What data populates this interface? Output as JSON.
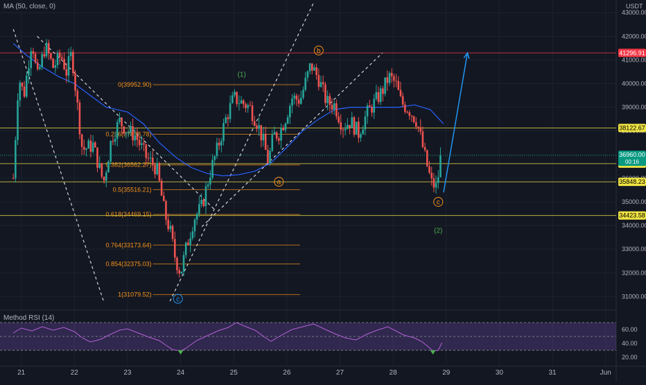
{
  "indicator_label": "MA (50, close, 0)",
  "rsi_label": "Method RSI (14)",
  "currency": "USDT",
  "colors": {
    "background": "#131722",
    "up": "#26a69a",
    "down": "#ef5350",
    "ma": "#2962ff",
    "fib": "#f7931a",
    "rsi_line": "#b45fd6",
    "rsi_band": "#7e57c2",
    "projection": "#2196f3",
    "current": "#089981"
  },
  "chart_data": {
    "type": "candlestick",
    "x_ticks": [
      "21",
      "22",
      "23",
      "24",
      "25",
      "26",
      "27",
      "28",
      "29",
      "30",
      "31",
      "Jun"
    ],
    "y_ticks": [
      31000,
      32000,
      33000,
      34000,
      35000,
      36000,
      37000,
      38000,
      39000,
      40000,
      41000,
      42000,
      43000
    ],
    "y_tick_labels": [
      "31000.00",
      "32000.00",
      "33000.00",
      "34000.00",
      "35000.00",
      "36000.00",
      "37000.00",
      "38000.00",
      "39000.00",
      "40000.00",
      "41000.00",
      "42000.00",
      "43000.00"
    ],
    "ylim": [
      30600,
      43300
    ],
    "price_path": [
      [
        20.85,
        36000
      ],
      [
        20.95,
        40300
      ],
      [
        21.05,
        39500
      ],
      [
        21.2,
        41900
      ],
      [
        21.3,
        40200
      ],
      [
        21.45,
        41600
      ],
      [
        21.6,
        40700
      ],
      [
        21.75,
        41200
      ],
      [
        21.85,
        40500
      ],
      [
        21.95,
        41300
      ],
      [
        22.05,
        39200
      ],
      [
        22.15,
        37200
      ],
      [
        22.35,
        37400
      ],
      [
        22.55,
        35800
      ],
      [
        22.7,
        37700
      ],
      [
        22.85,
        38400
      ],
      [
        23.0,
        38000
      ],
      [
        23.15,
        37800
      ],
      [
        23.35,
        36900
      ],
      [
        23.55,
        36400
      ],
      [
        23.7,
        34500
      ],
      [
        23.8,
        33800
      ],
      [
        23.9,
        32600
      ],
      [
        24.0,
        32000
      ],
      [
        24.1,
        33000
      ],
      [
        24.25,
        34300
      ],
      [
        24.4,
        34800
      ],
      [
        24.55,
        36200
      ],
      [
        24.7,
        37300
      ],
      [
        24.85,
        38500
      ],
      [
        25.0,
        39400
      ],
      [
        25.15,
        39200
      ],
      [
        25.3,
        39000
      ],
      [
        25.45,
        38300
      ],
      [
        25.55,
        37600
      ],
      [
        25.65,
        36700
      ],
      [
        25.75,
        37800
      ],
      [
        25.85,
        37900
      ],
      [
        25.95,
        38400
      ],
      [
        26.1,
        39400
      ],
      [
        26.25,
        39300
      ],
      [
        26.45,
        40800
      ],
      [
        26.6,
        40200
      ],
      [
        26.75,
        39200
      ],
      [
        26.9,
        39100
      ],
      [
        27.05,
        38200
      ],
      [
        27.2,
        38400
      ],
      [
        27.35,
        37900
      ],
      [
        27.5,
        38700
      ],
      [
        27.65,
        39200
      ],
      [
        27.8,
        39700
      ],
      [
        27.92,
        40300
      ],
      [
        28.05,
        40000
      ],
      [
        28.15,
        39200
      ],
      [
        28.3,
        38900
      ],
      [
        28.45,
        38400
      ],
      [
        28.6,
        36900
      ],
      [
        28.72,
        35800
      ],
      [
        28.82,
        35600
      ],
      [
        28.9,
        36960
      ]
    ],
    "ma50": [
      [
        20.85,
        41700
      ],
      [
        21.1,
        41200
      ],
      [
        21.4,
        40700
      ],
      [
        21.7,
        40300
      ],
      [
        22.0,
        40000
      ],
      [
        22.3,
        39500
      ],
      [
        22.6,
        39000
      ],
      [
        23.0,
        38800
      ],
      [
        23.3,
        38300
      ],
      [
        23.6,
        37500
      ],
      [
        23.9,
        36900
      ],
      [
        24.2,
        36450
      ],
      [
        24.5,
        36200
      ],
      [
        24.8,
        36100
      ],
      [
        25.1,
        36150
      ],
      [
        25.4,
        36300
      ],
      [
        25.7,
        36650
      ],
      [
        26.0,
        37300
      ],
      [
        26.3,
        38000
      ],
      [
        26.6,
        38500
      ],
      [
        26.9,
        38900
      ],
      [
        27.2,
        39000
      ],
      [
        27.5,
        39000
      ],
      [
        27.8,
        39000
      ],
      [
        28.1,
        39000
      ],
      [
        28.4,
        39100
      ],
      [
        28.7,
        38900
      ],
      [
        28.95,
        38300
      ]
    ],
    "current_price": {
      "value": 36960.0,
      "label": "36960.00",
      "countdown": "00:16"
    },
    "price_levels": [
      {
        "value": 41296.91,
        "label": "41296.91",
        "color": "#f23645",
        "label_color": "#ffffff"
      },
      {
        "value": 38122.67,
        "label": "38122.67",
        "color": "#f0e442",
        "label_color": "#000000"
      },
      {
        "value": 36617.32,
        "label": "36617.32",
        "color": "#f0e442",
        "label_color": "#000000"
      },
      {
        "value": 35848.23,
        "label": "35848.23",
        "color": "#f0e442",
        "label_color": "#000000"
      },
      {
        "value": 34423.58,
        "label": "34423.58",
        "color": "#f0e442",
        "label_color": "#000000"
      }
    ],
    "fib_levels": [
      {
        "ratio": "0",
        "value": 39952.9,
        "label": "0(39952.90)"
      },
      {
        "ratio": "0.236",
        "value": 37858.78,
        "label": "0.236(37858.78)"
      },
      {
        "ratio": "0.382",
        "value": 36562.27,
        "label": "0.382(36562.27)"
      },
      {
        "ratio": "0.5",
        "value": 35516.21,
        "label": "0.5(35516.21)"
      },
      {
        "ratio": "0.618",
        "value": 34469.15,
        "label": "0.618(34469.15)"
      },
      {
        "ratio": "0.764",
        "value": 33173.64,
        "label": "0.764(33173.64)"
      },
      {
        "ratio": "0.854",
        "value": 32375.03,
        "label": "0.854(32375.03)"
      },
      {
        "ratio": "1",
        "value": 31079.52,
        "label": "1(31079.52)"
      }
    ],
    "wave_labels": [
      {
        "text": "b",
        "x": 26.6,
        "y": 41400,
        "color": "#f7931a",
        "circled": true
      },
      {
        "text": "(1)",
        "x": 25.15,
        "y": 40400,
        "color": "#4caf50",
        "circled": false
      },
      {
        "text": "a",
        "x": 25.85,
        "y": 35850,
        "color": "#f7931a",
        "circled": true
      },
      {
        "text": "c",
        "x": 28.85,
        "y": 35000,
        "color": "#f7931a",
        "circled": true
      },
      {
        "text": "(2)",
        "x": 28.85,
        "y": 33800,
        "color": "#4caf50",
        "circled": false
      },
      {
        "text": "c",
        "x": 23.95,
        "y": 30900,
        "color": "#2196f3",
        "circled": true
      }
    ],
    "trend_lines": [
      {
        "from": [
          20.85,
          42300
        ],
        "to": [
          22.55,
          30800
        ],
        "color": "#d1d4dc",
        "dashed": true
      },
      {
        "from": [
          21.3,
          42000
        ],
        "to": [
          24.65,
          34650
        ],
        "color": "#d1d4dc",
        "dashed": true
      },
      {
        "from": [
          23.8,
          30800
        ],
        "to": [
          26.5,
          43400
        ],
        "color": "#d1d4dc",
        "dashed": true
      },
      {
        "from": [
          24.4,
          33950
        ],
        "to": [
          27.8,
          41300
        ],
        "color": "#d1d4dc",
        "dashed": true
      }
    ],
    "projection": {
      "from": [
        28.95,
        35400
      ],
      "to": [
        29.4,
        41300
      ],
      "color": "#2196f3"
    },
    "rsi": {
      "ticks": [
        20,
        40,
        60
      ],
      "tick_labels": [
        "20.00",
        "40.00",
        "60.00"
      ],
      "ylim": [
        15,
        77
      ],
      "overbought": 70,
      "oversold": 30,
      "path": [
        [
          20.85,
          55
        ],
        [
          21.0,
          62
        ],
        [
          21.2,
          58
        ],
        [
          21.4,
          64
        ],
        [
          21.6,
          59
        ],
        [
          21.8,
          63
        ],
        [
          22.0,
          57
        ],
        [
          22.15,
          48
        ],
        [
          22.3,
          42
        ],
        [
          22.5,
          46
        ],
        [
          22.65,
          52
        ],
        [
          22.85,
          59
        ],
        [
          23.0,
          61
        ],
        [
          23.2,
          55
        ],
        [
          23.4,
          49
        ],
        [
          23.6,
          44
        ],
        [
          23.75,
          36
        ],
        [
          23.85,
          31
        ],
        [
          24.0,
          29
        ],
        [
          24.1,
          33
        ],
        [
          24.3,
          44
        ],
        [
          24.5,
          51
        ],
        [
          24.7,
          58
        ],
        [
          24.9,
          63
        ],
        [
          25.05,
          70
        ],
        [
          25.2,
          65
        ],
        [
          25.4,
          59
        ],
        [
          25.6,
          48
        ],
        [
          25.7,
          43
        ],
        [
          25.9,
          52
        ],
        [
          26.1,
          60
        ],
        [
          26.3,
          64
        ],
        [
          26.5,
          68
        ],
        [
          26.7,
          61
        ],
        [
          26.9,
          54
        ],
        [
          27.1,
          48
        ],
        [
          27.3,
          45
        ],
        [
          27.5,
          53
        ],
        [
          27.7,
          59
        ],
        [
          27.9,
          64
        ],
        [
          28.05,
          58
        ],
        [
          28.2,
          52
        ],
        [
          28.4,
          48
        ],
        [
          28.55,
          42
        ],
        [
          28.65,
          36
        ],
        [
          28.75,
          29
        ],
        [
          28.85,
          30
        ],
        [
          28.92,
          41
        ]
      ]
    }
  }
}
